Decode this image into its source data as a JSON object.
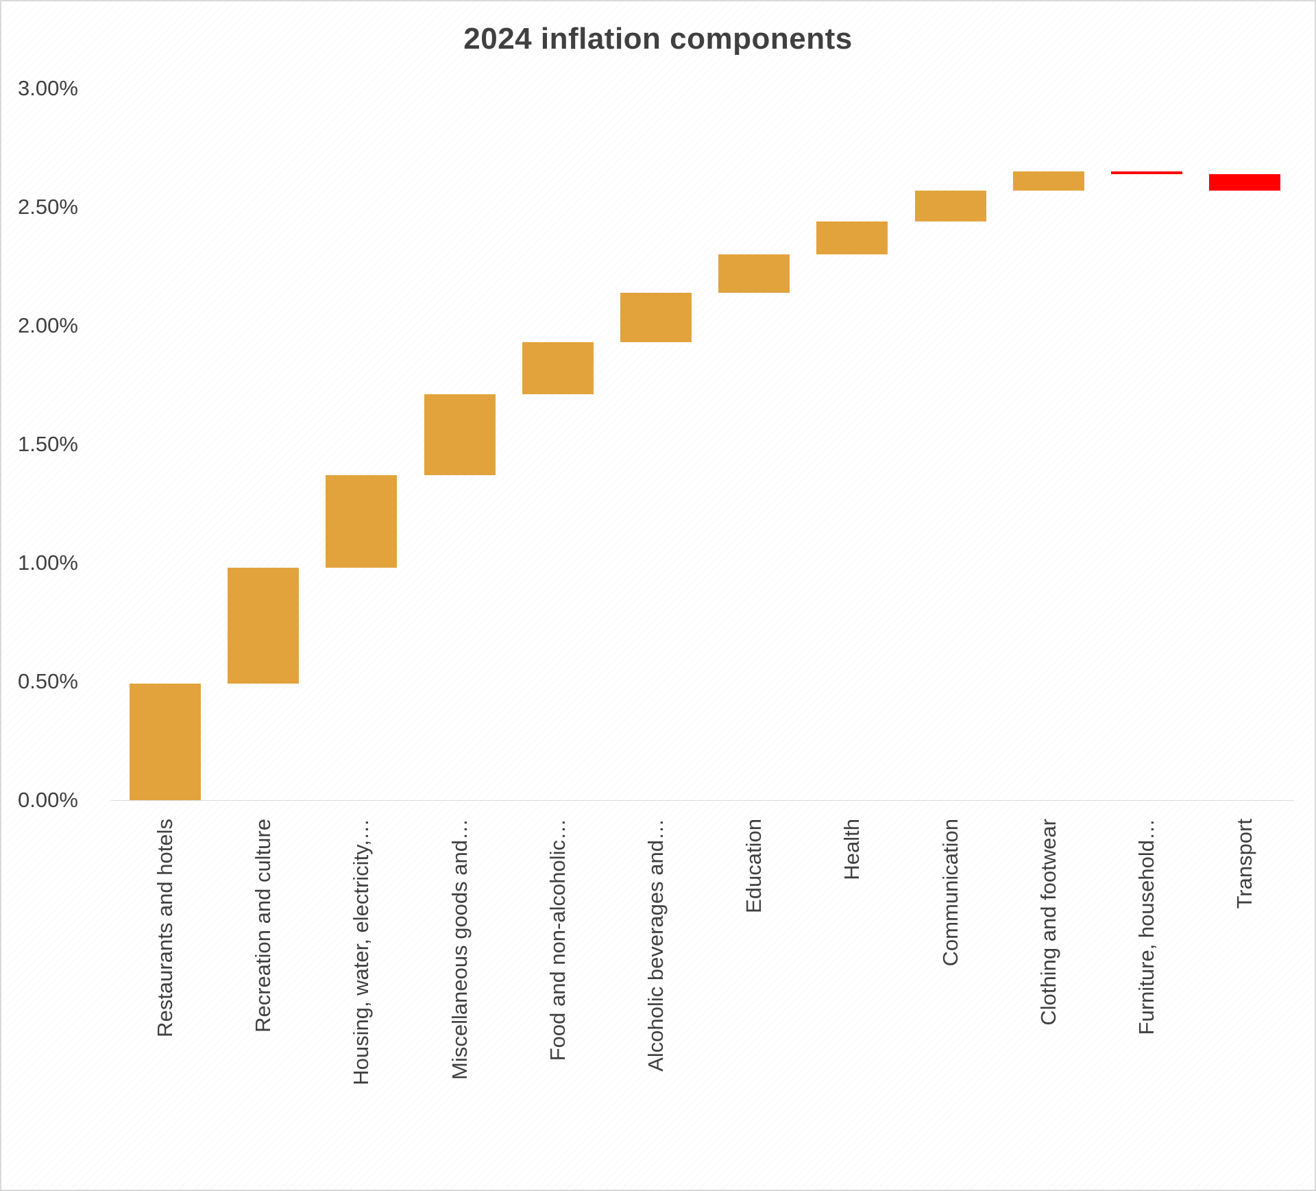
{
  "chart_data": {
    "type": "bar",
    "subtype": "waterfall",
    "title": "2024 inflation components",
    "categories": [
      "Restaurants and hotels",
      "Recreation and culture",
      "Housing, water, electricity,…",
      "Miscellaneous goods and…",
      "Food and non-alcoholic…",
      "Alcoholic beverages and…",
      "Education",
      "Health",
      "Communication",
      "Clothing and footwear",
      "Furniture, household…",
      "Transport"
    ],
    "values": [
      0.49,
      0.49,
      0.39,
      0.34,
      0.22,
      0.21,
      0.16,
      0.14,
      0.13,
      0.08,
      -0.01,
      -0.07
    ],
    "value_unit": "percentage points (contribution to annual inflation)",
    "xlabel": "",
    "ylabel": "",
    "ylim": [
      0,
      3
    ],
    "y_ticks": [
      {
        "label": "0.00%",
        "value": 0.0
      },
      {
        "label": "0.50%",
        "value": 0.5
      },
      {
        "label": "1.00%",
        "value": 1.0
      },
      {
        "label": "1.50%",
        "value": 1.5
      },
      {
        "label": "2.00%",
        "value": 2.0
      },
      {
        "label": "2.50%",
        "value": 2.5
      },
      {
        "label": "3.00%",
        "value": 3.0
      }
    ],
    "grid": "off",
    "legend": "none",
    "colors": {
      "increase": "#E2A33D",
      "decrease": "#FF0000",
      "text": "#3f3f3f"
    }
  }
}
